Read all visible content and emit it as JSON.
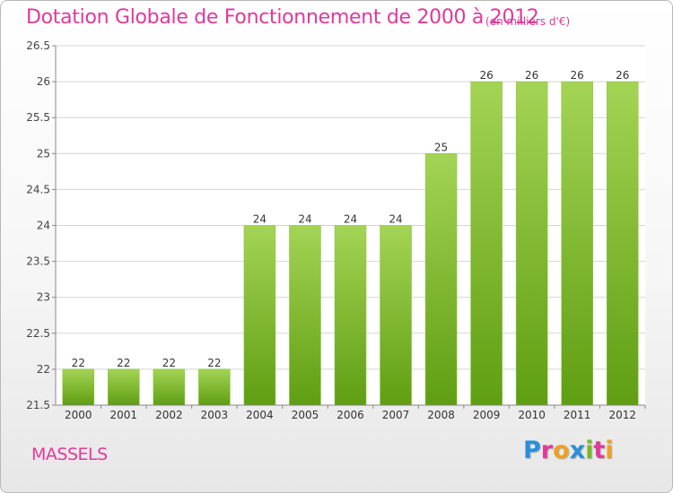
{
  "header": {
    "title": "Dotation Globale de Fonctionnement de 2000 à 2012",
    "subtitle": "(en milliers d'€)"
  },
  "footer": {
    "commune": "MASSELS",
    "logo_text": "Proxiti",
    "logo_colors": [
      "#2a8fd6",
      "#e0399a",
      "#f0a020",
      "#2a8fd6",
      "#7ab829",
      "#e0399a",
      "#f0a020"
    ]
  },
  "colors": {
    "accent": "#e0399a",
    "bar_light": "#a4d455",
    "bar_dark": "#5f9e12",
    "grid": "#d4d4d4"
  },
  "chart_data": {
    "type": "bar",
    "title": "Dotation Globale de Fonctionnement de 2000 à 2012",
    "subtitle": "(en milliers d'€)",
    "categories": [
      "2000",
      "2001",
      "2002",
      "2003",
      "2004",
      "2005",
      "2006",
      "2007",
      "2008",
      "2009",
      "2010",
      "2011",
      "2012"
    ],
    "values": [
      22,
      22,
      22,
      22,
      24,
      24,
      24,
      24,
      25,
      26,
      26,
      26,
      26
    ],
    "ylim": [
      21.5,
      26.5
    ],
    "yticks": [
      "21.5",
      "22",
      "22.5",
      "23",
      "23.5",
      "24",
      "24.5",
      "25",
      "25.5",
      "26",
      "26.5"
    ],
    "grid": true,
    "data_labels": true
  }
}
